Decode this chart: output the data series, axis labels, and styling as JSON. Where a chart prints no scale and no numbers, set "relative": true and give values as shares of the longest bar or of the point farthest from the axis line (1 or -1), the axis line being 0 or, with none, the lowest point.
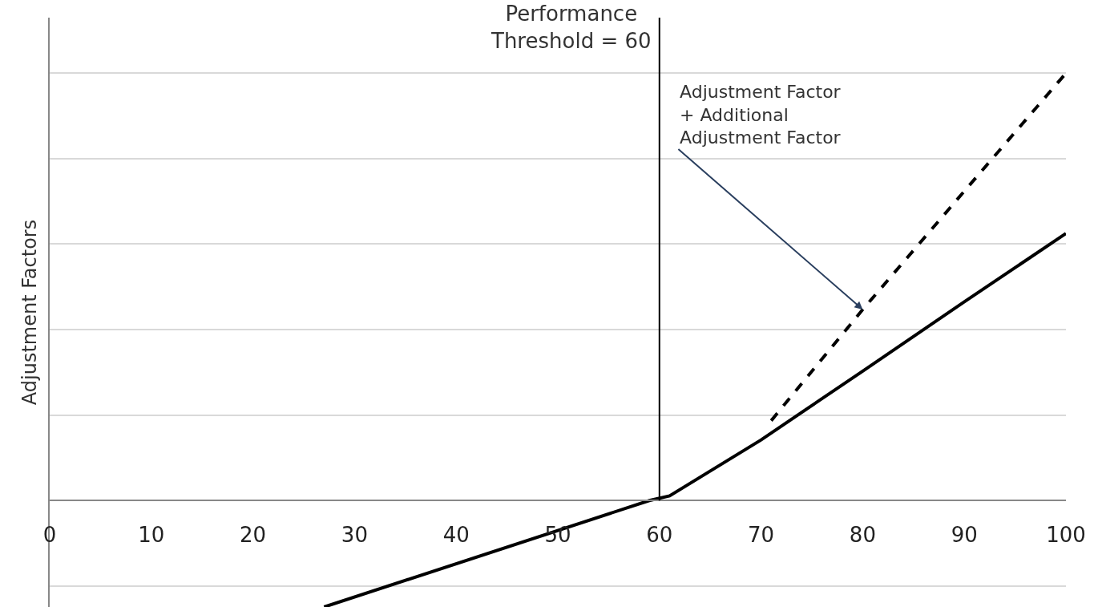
{
  "chart_data": {
    "type": "line",
    "relative": true,
    "ylabel": "Adjustment Factors",
    "x": [
      27,
      59,
      61,
      70,
      80,
      90,
      100
    ],
    "series": [
      {
        "color": "#000000",
        "line_style": "solid",
        "values": [
          -0.249,
          0,
          0.011,
          0.142,
          0.303,
          0.465,
          0.625
        ]
      },
      {
        "color": "#000000",
        "line_style": "dashed",
        "x": [
          71,
          80,
          90,
          100
        ],
        "values": [
          0.187,
          0.447,
          0.724,
          1
        ]
      }
    ],
    "xlim": [
      0,
      100
    ],
    "xticks": [
      0,
      10,
      20,
      30,
      40,
      50,
      60,
      70,
      80,
      90,
      100
    ],
    "grid": "y",
    "ref_lines": [
      {
        "axis": "x",
        "value": 60,
        "label": "Performance\nThreshold = 60",
        "color": "#000000"
      }
    ],
    "annotations": [
      {
        "text": "Adjustment Factor\n+ Additional\nAdjustment Factor",
        "x": 80,
        "y": 0.447
      }
    ]
  }
}
